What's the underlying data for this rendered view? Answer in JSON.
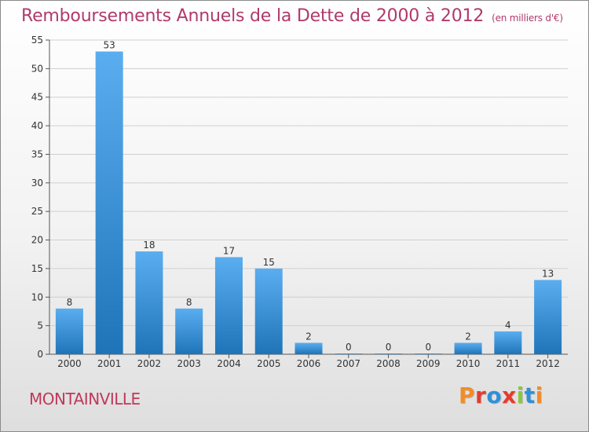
{
  "header": {
    "title": "Remboursements Annuels de la Dette de 2000 à 2012",
    "subtitle": "(en milliers d'€)"
  },
  "footer": {
    "commune": "MONTAINVILLE",
    "logo_text": "Proxiti",
    "logo_colors": [
      "#f28c28",
      "#e63b2e",
      "#2f8fd8",
      "#e63b2e",
      "#8cc63f",
      "#2f8fd8",
      "#f28c28"
    ]
  },
  "colors": {
    "title": "#b03a6a",
    "bar_top": "#5aaef0",
    "bar_bottom": "#1f74b8",
    "grid": "#cfcfcf"
  },
  "chart_data": {
    "type": "bar",
    "categories": [
      "2000",
      "2001",
      "2002",
      "2003",
      "2004",
      "2005",
      "2006",
      "2007",
      "2008",
      "2009",
      "2010",
      "2011",
      "2012"
    ],
    "values": [
      8,
      53,
      18,
      8,
      17,
      15,
      2,
      0,
      0,
      0,
      2,
      4,
      13
    ],
    "ylim": [
      0,
      55
    ],
    "yticks": [
      0,
      5,
      10,
      15,
      20,
      25,
      30,
      35,
      40,
      45,
      50,
      55
    ],
    "grid": true
  }
}
